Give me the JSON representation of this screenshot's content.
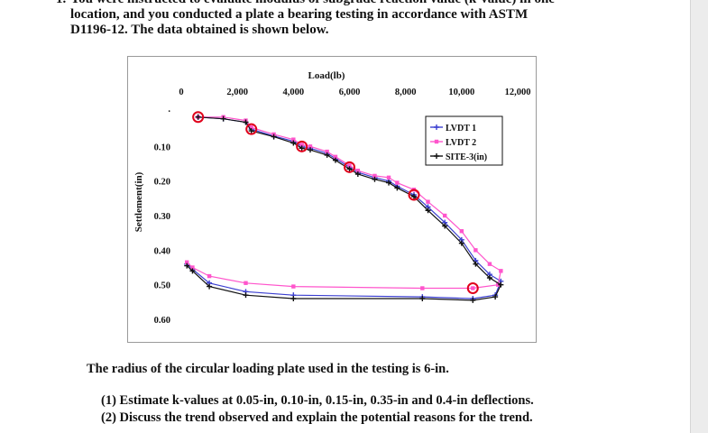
{
  "question": {
    "number": "1.",
    "lines": [
      "You were instructed to evaluate modulus of subgrade reaction value (k-value) in one",
      "location, and you conducted a plate a bearing testing in accordance with ASTM",
      "D1196-12. The data obtained is shown below."
    ]
  },
  "chart_data": {
    "type": "line",
    "title": "",
    "xlabel": "Load(lb)",
    "ylabel": "Settlement(in)",
    "x_axis_position": "top",
    "y_axis_inverted": true,
    "xlim": [
      0,
      12000
    ],
    "ylim": [
      0,
      0.6
    ],
    "x_ticks": [
      "0",
      "2,000",
      "4,000",
      "6,000",
      "8,000",
      "10,000",
      "12,000"
    ],
    "y_ticks": [
      ".",
      "0.10",
      "0.20",
      "0.30",
      "0.40",
      "0.50",
      "0.60"
    ],
    "grid": false,
    "legend_position": "top-right",
    "series": [
      {
        "name": "LVDT 1",
        "color": "#3b3fd0",
        "marker": "plus",
        "points": [
          [
            600,
            0.015
          ],
          [
            1500,
            0.02
          ],
          [
            2300,
            0.03
          ],
          [
            2500,
            0.05
          ],
          [
            3300,
            0.07
          ],
          [
            4000,
            0.085
          ],
          [
            4300,
            0.1
          ],
          [
            4600,
            0.105
          ],
          [
            5200,
            0.12
          ],
          [
            5500,
            0.135
          ],
          [
            6000,
            0.16
          ],
          [
            6300,
            0.175
          ],
          [
            6900,
            0.19
          ],
          [
            7400,
            0.2
          ],
          [
            7700,
            0.215
          ],
          [
            8300,
            0.24
          ],
          [
            8800,
            0.275
          ],
          [
            9400,
            0.32
          ],
          [
            10000,
            0.37
          ],
          [
            10500,
            0.43
          ],
          [
            11000,
            0.47
          ],
          [
            11400,
            0.49
          ],
          [
            11200,
            0.53
          ],
          [
            10400,
            0.54
          ],
          [
            8600,
            0.535
          ],
          [
            4000,
            0.53
          ],
          [
            2300,
            0.52
          ],
          [
            1000,
            0.495
          ],
          [
            400,
            0.455
          ],
          [
            200,
            0.44
          ]
        ]
      },
      {
        "name": "LVDT 2",
        "color": "#ff55cc",
        "marker": "square",
        "points": [
          [
            600,
            0.015
          ],
          [
            1500,
            0.015
          ],
          [
            2300,
            0.025
          ],
          [
            2500,
            0.045
          ],
          [
            3300,
            0.065
          ],
          [
            4000,
            0.08
          ],
          [
            4300,
            0.095
          ],
          [
            4600,
            0.1
          ],
          [
            5200,
            0.115
          ],
          [
            5500,
            0.13
          ],
          [
            6000,
            0.155
          ],
          [
            6300,
            0.17
          ],
          [
            6900,
            0.185
          ],
          [
            7400,
            0.19
          ],
          [
            7700,
            0.205
          ],
          [
            8300,
            0.225
          ],
          [
            8800,
            0.26
          ],
          [
            9400,
            0.3
          ],
          [
            10000,
            0.345
          ],
          [
            10500,
            0.4
          ],
          [
            11000,
            0.44
          ],
          [
            11400,
            0.46
          ],
          [
            11300,
            0.5
          ],
          [
            10400,
            0.51
          ],
          [
            8600,
            0.51
          ],
          [
            4000,
            0.505
          ],
          [
            2300,
            0.495
          ],
          [
            1000,
            0.475
          ],
          [
            400,
            0.45
          ],
          [
            200,
            0.435
          ]
        ]
      },
      {
        "name": "SITE-3(in)",
        "color": "#111111",
        "marker": "plus",
        "points": [
          [
            600,
            0.015
          ],
          [
            1500,
            0.02
          ],
          [
            2300,
            0.03
          ],
          [
            2500,
            0.055
          ],
          [
            3300,
            0.072
          ],
          [
            4000,
            0.09
          ],
          [
            4300,
            0.105
          ],
          [
            4600,
            0.11
          ],
          [
            5200,
            0.125
          ],
          [
            5500,
            0.14
          ],
          [
            6000,
            0.165
          ],
          [
            6300,
            0.18
          ],
          [
            6900,
            0.195
          ],
          [
            7400,
            0.205
          ],
          [
            7700,
            0.22
          ],
          [
            8300,
            0.245
          ],
          [
            8800,
            0.285
          ],
          [
            9400,
            0.33
          ],
          [
            10000,
            0.38
          ],
          [
            10500,
            0.44
          ],
          [
            11000,
            0.48
          ],
          [
            11400,
            0.5
          ],
          [
            11200,
            0.535
          ],
          [
            10400,
            0.545
          ],
          [
            8600,
            0.54
          ],
          [
            4000,
            0.54
          ],
          [
            2300,
            0.53
          ],
          [
            1000,
            0.505
          ],
          [
            400,
            0.46
          ],
          [
            200,
            0.445
          ]
        ]
      }
    ],
    "annotations": [
      {
        "type": "circle",
        "color": "#e0001b",
        "x": 600,
        "y": 0.015
      },
      {
        "type": "circle",
        "color": "#e0001b",
        "x": 2500,
        "y": 0.05
      },
      {
        "type": "circle",
        "color": "#e0001b",
        "x": 4300,
        "y": 0.1
      },
      {
        "type": "circle",
        "color": "#e0001b",
        "x": 6000,
        "y": 0.16
      },
      {
        "type": "circle",
        "color": "#e0001b",
        "x": 8300,
        "y": 0.24
      },
      {
        "type": "circle",
        "color": "#e0001b",
        "x": 10400,
        "y": 0.51
      }
    ]
  },
  "note": "The radius of the circular loading plate used in the testing is 6-in.",
  "tasks": [
    "(1) Estimate k-values at 0.05-in, 0.10-in, 0.15-in, 0.35-in and 0.4-in deflections.",
    "(2) Discuss the trend observed and explain the potential reasons for the trend."
  ]
}
